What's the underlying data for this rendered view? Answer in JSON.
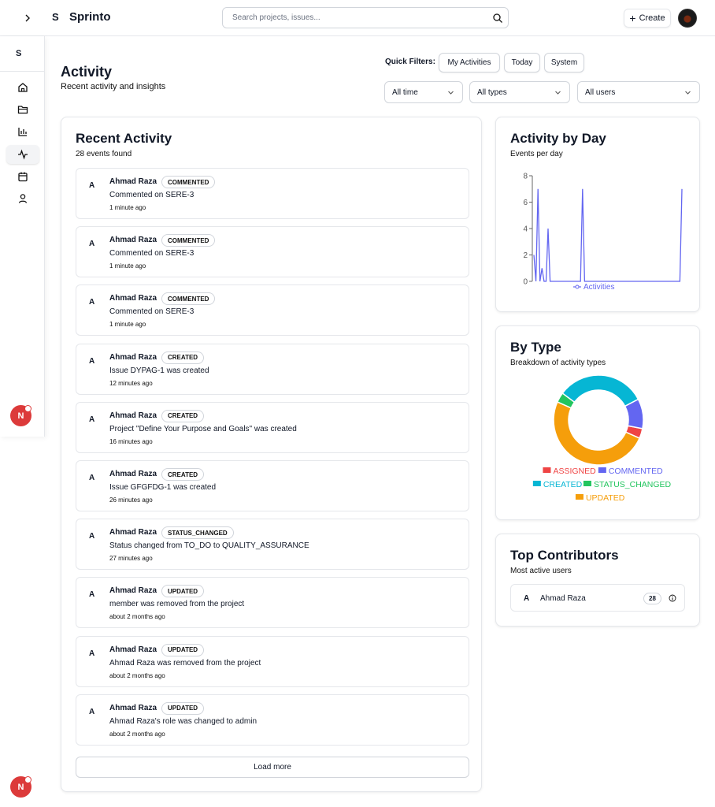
{
  "app": {
    "brand_initial": "S",
    "brand_name": "Sprinto",
    "sidebar_initial": "S",
    "user_initial": "N"
  },
  "search": {
    "placeholder": "Search projects, issues..."
  },
  "topbar": {
    "create_label": "Create"
  },
  "sidebar": {
    "items": [
      {
        "icon": "home-icon"
      },
      {
        "icon": "folder-icon"
      },
      {
        "icon": "bar-chart-icon"
      },
      {
        "icon": "activity-icon",
        "active": true
      },
      {
        "icon": "calendar-icon"
      },
      {
        "icon": "user-icon"
      }
    ]
  },
  "page": {
    "title": "Activity",
    "subtitle": "Recent activity and insights"
  },
  "quick_filters": {
    "label": "Quick Filters:",
    "buttons": [
      "My Activities",
      "Today",
      "System"
    ]
  },
  "filters": {
    "time": "All time",
    "types": "All types",
    "users": "All users"
  },
  "recent": {
    "title": "Recent Activity",
    "count_text": "28 events found",
    "items": [
      {
        "avatar": "A",
        "name": "Ahmad Raza",
        "type": "COMMENTED",
        "desc": "Commented on SERE-3",
        "time": "1 minute ago"
      },
      {
        "avatar": "A",
        "name": "Ahmad Raza",
        "type": "COMMENTED",
        "desc": "Commented on SERE-3",
        "time": "1 minute ago"
      },
      {
        "avatar": "A",
        "name": "Ahmad Raza",
        "type": "COMMENTED",
        "desc": "Commented on SERE-3",
        "time": "1 minute ago"
      },
      {
        "avatar": "A",
        "name": "Ahmad Raza",
        "type": "CREATED",
        "desc": "Issue DYPAG-1 was created",
        "time": "12 minutes ago"
      },
      {
        "avatar": "A",
        "name": "Ahmad Raza",
        "type": "CREATED",
        "desc": "Project \"Define Your Purpose and Goals\" was created",
        "time": "16 minutes ago"
      },
      {
        "avatar": "A",
        "name": "Ahmad Raza",
        "type": "CREATED",
        "desc": "Issue GFGFDG-1 was created",
        "time": "26 minutes ago"
      },
      {
        "avatar": "A",
        "name": "Ahmad Raza",
        "type": "STATUS_CHANGED",
        "desc": "Status changed from TO_DO to QUALITY_ASSURANCE",
        "time": "27 minutes ago"
      },
      {
        "avatar": "A",
        "name": "Ahmad Raza",
        "type": "UPDATED",
        "desc": "member was removed from the project",
        "time": "about 2 months ago"
      },
      {
        "avatar": "A",
        "name": "Ahmad Raza",
        "type": "UPDATED",
        "desc": "Ahmad Raza was removed from the project",
        "time": "about 2 months ago"
      },
      {
        "avatar": "A",
        "name": "Ahmad Raza",
        "type": "UPDATED",
        "desc": "Ahmad Raza's role was changed to admin",
        "time": "about 2 months ago"
      }
    ],
    "load_more_label": "Load more"
  },
  "by_day": {
    "title": "Activity by Day",
    "subtitle": "Events per day"
  },
  "by_type": {
    "title": "By Type",
    "subtitle": "Breakdown of activity types"
  },
  "contributors": {
    "title": "Top Contributors",
    "subtitle": "Most active users",
    "items": [
      {
        "avatar": "A",
        "name": "Ahmad Raza",
        "count": "28"
      }
    ]
  },
  "chart_data": [
    {
      "type": "line",
      "title": "Activity by Day",
      "series": [
        {
          "name": "Activities",
          "color": "#6366f1",
          "values": [
            2,
            0,
            7,
            0,
            1,
            0,
            0,
            4,
            0,
            0,
            0,
            0,
            0,
            0,
            0,
            0,
            0,
            0,
            0,
            0,
            0,
            0,
            0,
            0,
            7,
            0,
            0,
            0,
            0,
            0,
            0,
            0,
            0,
            0,
            0,
            0,
            0,
            0,
            0,
            0,
            0,
            0,
            0,
            0,
            0,
            0,
            0,
            0,
            0,
            0,
            0,
            0,
            0,
            0,
            0,
            0,
            0,
            0,
            0,
            0,
            0,
            0,
            0,
            0,
            0,
            0,
            0,
            0,
            0,
            0,
            0,
            0,
            0,
            7
          ]
        }
      ],
      "yticks": [
        0,
        2,
        4,
        6,
        8
      ],
      "ylim": [
        0,
        8
      ],
      "legend": "bottom",
      "grid": false
    },
    {
      "type": "pie",
      "title": "By Type",
      "donut": true,
      "categories": [
        "ASSIGNED",
        "COMMENTED",
        "CREATED",
        "STATUS_CHANGED",
        "UPDATED"
      ],
      "values": [
        1,
        3,
        9,
        1,
        14
      ],
      "colors": [
        "#ef4444",
        "#6366f1",
        "#06b6d4",
        "#22c55e",
        "#f59e0b"
      ],
      "legend": "bottom"
    }
  ]
}
